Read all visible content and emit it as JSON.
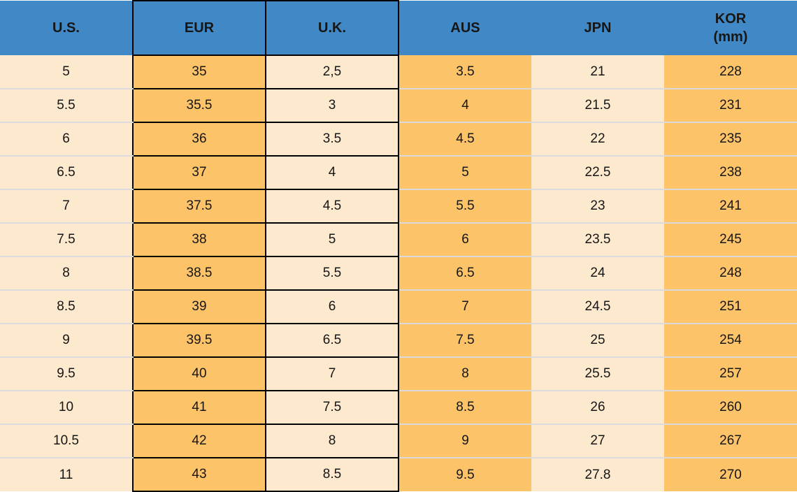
{
  "header": {
    "us": "U.S.",
    "eur": "EUR",
    "uk": "U.K.",
    "aus": "AUS",
    "jpn": "JPN",
    "kor_line1": "KOR",
    "kor_line2": "(mm)"
  },
  "colors": {
    "header_bg": "#4189C6",
    "orange_cell": "#FDC368",
    "cream_cell": "#FDE9CE",
    "outline": "#000000",
    "row_separator": "#DBDBDB",
    "text": "#161616"
  },
  "chart_data": {
    "type": "table",
    "title": "Shoe size conversion table",
    "columns": [
      "U.S.",
      "EUR",
      "U.K.",
      "AUS",
      "JPN",
      "KOR (mm)"
    ],
    "rows": [
      [
        "5",
        "35",
        "2,5",
        "3.5",
        "21",
        "228"
      ],
      [
        "5.5",
        "35.5",
        "3",
        "4",
        "21.5",
        "231"
      ],
      [
        "6",
        "36",
        "3.5",
        "4.5",
        "22",
        "235"
      ],
      [
        "6.5",
        "37",
        "4",
        "5",
        "22.5",
        "238"
      ],
      [
        "7",
        "37.5",
        "4.5",
        "5.5",
        "23",
        "241"
      ],
      [
        "7.5",
        "38",
        "5",
        "6",
        "23.5",
        "245"
      ],
      [
        "8",
        "38.5",
        "5.5",
        "6.5",
        "24",
        "248"
      ],
      [
        "8.5",
        "39",
        "6",
        "7",
        "24.5",
        "251"
      ],
      [
        "9",
        "39.5",
        "6.5",
        "7.5",
        "25",
        "254"
      ],
      [
        "9.5",
        "40",
        "7",
        "8",
        "25.5",
        "257"
      ],
      [
        "10",
        "41",
        "7.5",
        "8.5",
        "26",
        "260"
      ],
      [
        "10.5",
        "42",
        "8",
        "9",
        "27",
        "267"
      ],
      [
        "11",
        "43",
        "8.5",
        "9.5",
        "27.8",
        "270"
      ]
    ]
  }
}
